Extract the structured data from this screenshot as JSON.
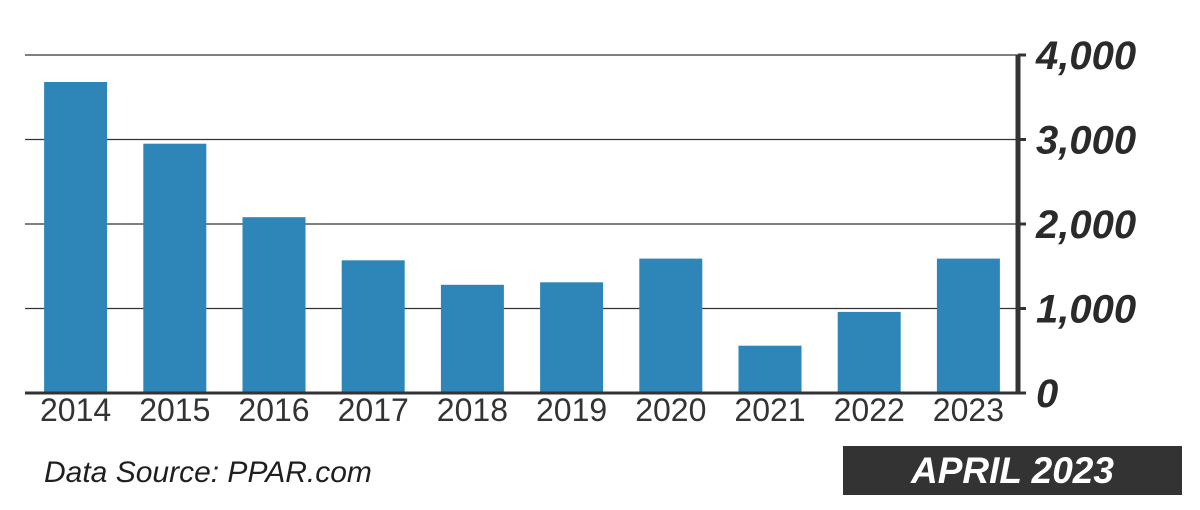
{
  "chart_data": {
    "type": "bar",
    "categories": [
      "2014",
      "2015",
      "2016",
      "2017",
      "2018",
      "2019",
      "2020",
      "2021",
      "2022",
      "2023"
    ],
    "values": [
      3680,
      2950,
      2080,
      1570,
      1280,
      1310,
      1590,
      560,
      960,
      1590
    ],
    "ylim": [
      0,
      4000
    ],
    "y_ticks": [
      0,
      1000,
      2000,
      3000,
      4000
    ],
    "y_tick_labels": [
      "0",
      "1,000",
      "2,000",
      "3,000",
      "4,000"
    ],
    "y_axis_side": "right",
    "grid": true,
    "bar_color": "#2e86b8",
    "grid_color": "#333333"
  },
  "source_note": "Data Source: PPAR.com",
  "date_badge": "APRIL 2023",
  "colors": {
    "badge_background": "#333333",
    "badge_text": "#ffffff",
    "text": "#1f1f1f"
  }
}
